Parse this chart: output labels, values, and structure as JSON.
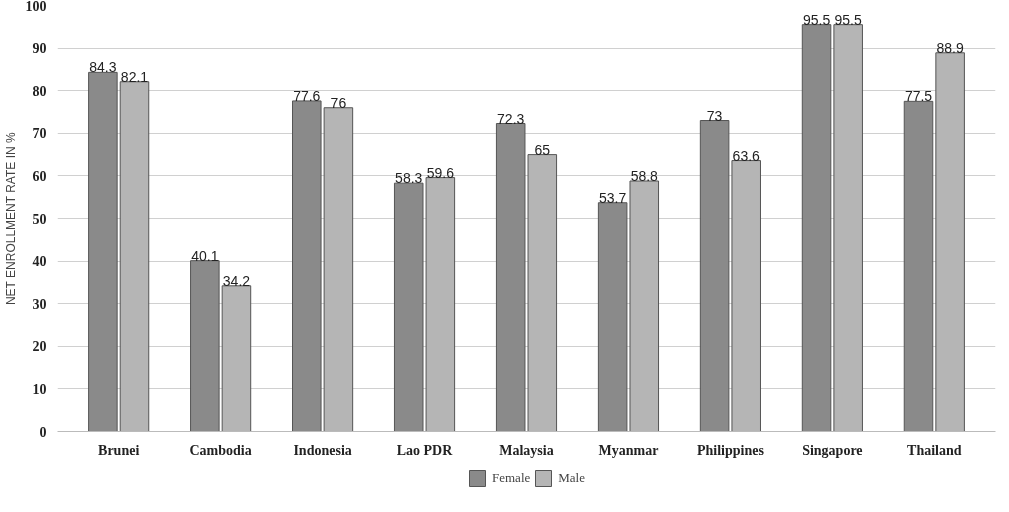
{
  "chart_data": {
    "type": "bar",
    "ylabel": "NET ENROLLMENT RATE IN %",
    "categories": [
      "Brunei",
      "Cambodia",
      "Indonesia",
      "Lao PDR",
      "Malaysia",
      "Myanmar",
      "Philippines",
      "Singapore",
      "Thailand"
    ],
    "series": [
      {
        "name": "Female",
        "color": "#8a8a8a",
        "values": [
          84.3,
          40.1,
          77.6,
          58.3,
          72.3,
          53.7,
          73,
          95.5,
          77.5
        ]
      },
      {
        "name": "Male",
        "color": "#b5b5b5",
        "values": [
          82.1,
          34.2,
          76,
          59.6,
          65,
          58.8,
          63.6,
          95.5,
          88.9
        ]
      }
    ],
    "ylim": [
      0,
      100
    ],
    "yticks": [
      0,
      10,
      20,
      30,
      40,
      50,
      60,
      70,
      80,
      90,
      100
    ],
    "grid": "y",
    "legend": "bottom",
    "data_labels": true
  }
}
